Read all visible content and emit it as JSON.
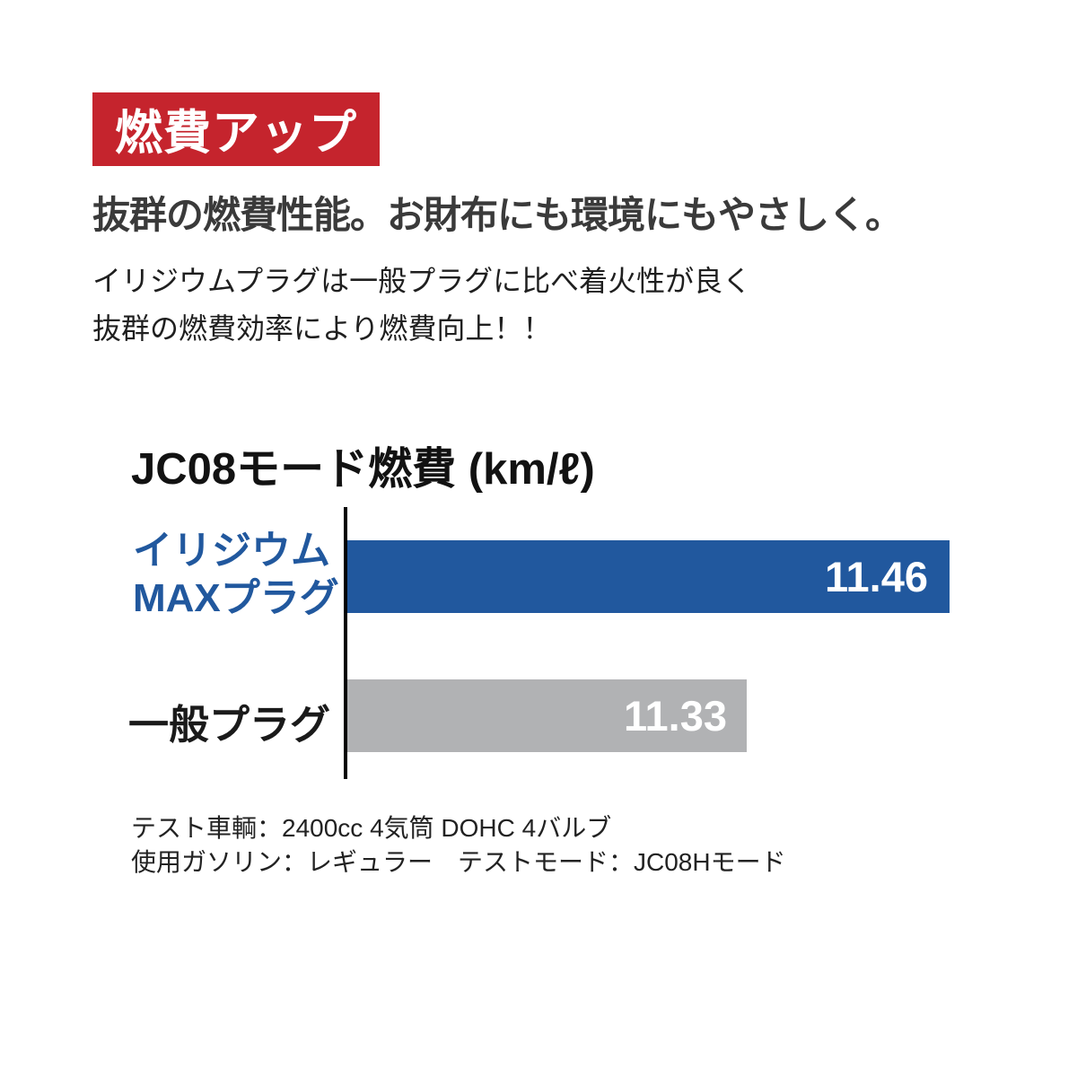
{
  "badge": {
    "label": "燃費アップ",
    "bg_color": "#C5242D",
    "text_color": "#FFFFFF"
  },
  "headline": "抜群の燃費性能。お財布にも環境にもやさしく。",
  "description_lines": [
    "イリジウムプラグは一般プラグに比べ着火性が良く",
    "抜群の燃費効率により燃費向上！！"
  ],
  "chart_data": {
    "type": "bar",
    "orientation": "horizontal",
    "title": "JC08モード燃費 (km/ℓ)",
    "categories": [
      "イリジウムMAXプラグ",
      "一般プラグ"
    ],
    "values": [
      11.46,
      11.33
    ],
    "unit": "km/ℓ",
    "axis_color": "#000000",
    "value_label_color": "#FFFFFF",
    "legend": "none",
    "grid": false,
    "bars": [
      {
        "label_lines": [
          "イリジウム",
          "MAXプラグ"
        ],
        "value": "11.46",
        "color": "#21589E",
        "label_color": "#21589E"
      },
      {
        "label_lines": [
          "一般プラグ"
        ],
        "value": "11.33",
        "color": "#B1B2B4",
        "label_color": "#1A1A1A"
      }
    ]
  },
  "footnotes": [
    "テスト車輌：2400cc 4気筒 DOHC 4バルブ",
    "使用ガソリン：レギュラー　テストモード：JC08Hモード"
  ]
}
